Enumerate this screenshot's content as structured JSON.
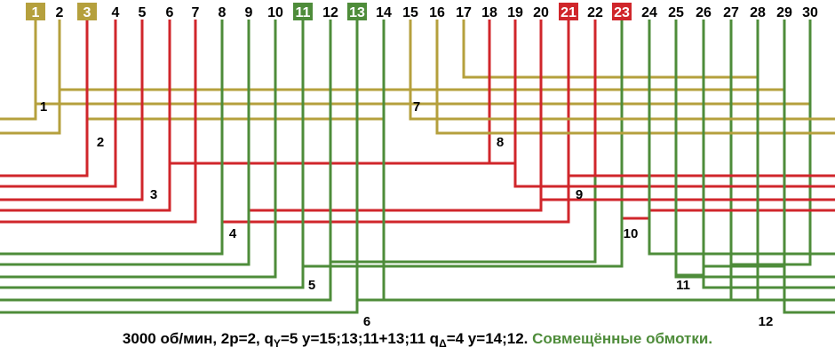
{
  "colors": {
    "yellow": "#b5a03d",
    "red": "#d0262b",
    "green": "#4e8c3a"
  },
  "slots": [
    "1",
    "2",
    "3",
    "4",
    "5",
    "6",
    "7",
    "8",
    "9",
    "10",
    "11",
    "12",
    "13",
    "14",
    "15",
    "16",
    "17",
    "18",
    "19",
    "20",
    "21",
    "22",
    "23",
    "24",
    "25",
    "26",
    "27",
    "28",
    "29",
    "30"
  ],
  "highlighted_slots": {
    "1": "yellow",
    "3": "yellow",
    "11": "green",
    "13": "green",
    "21": "red",
    "23": "red"
  },
  "coil_numbers": [
    "1",
    "2",
    "3",
    "4",
    "5",
    "6",
    "7",
    "8",
    "9",
    "10",
    "11",
    "12"
  ],
  "caption": {
    "part1": "3000 об/мин, 2р=2, q",
    "sub_y": "Y",
    "part2": "=5 y=15;13;11+13;11 q",
    "sub_d": "Δ",
    "part3": "=4 y=14;12.",
    "part4": "Совмещённые обмотки."
  }
}
